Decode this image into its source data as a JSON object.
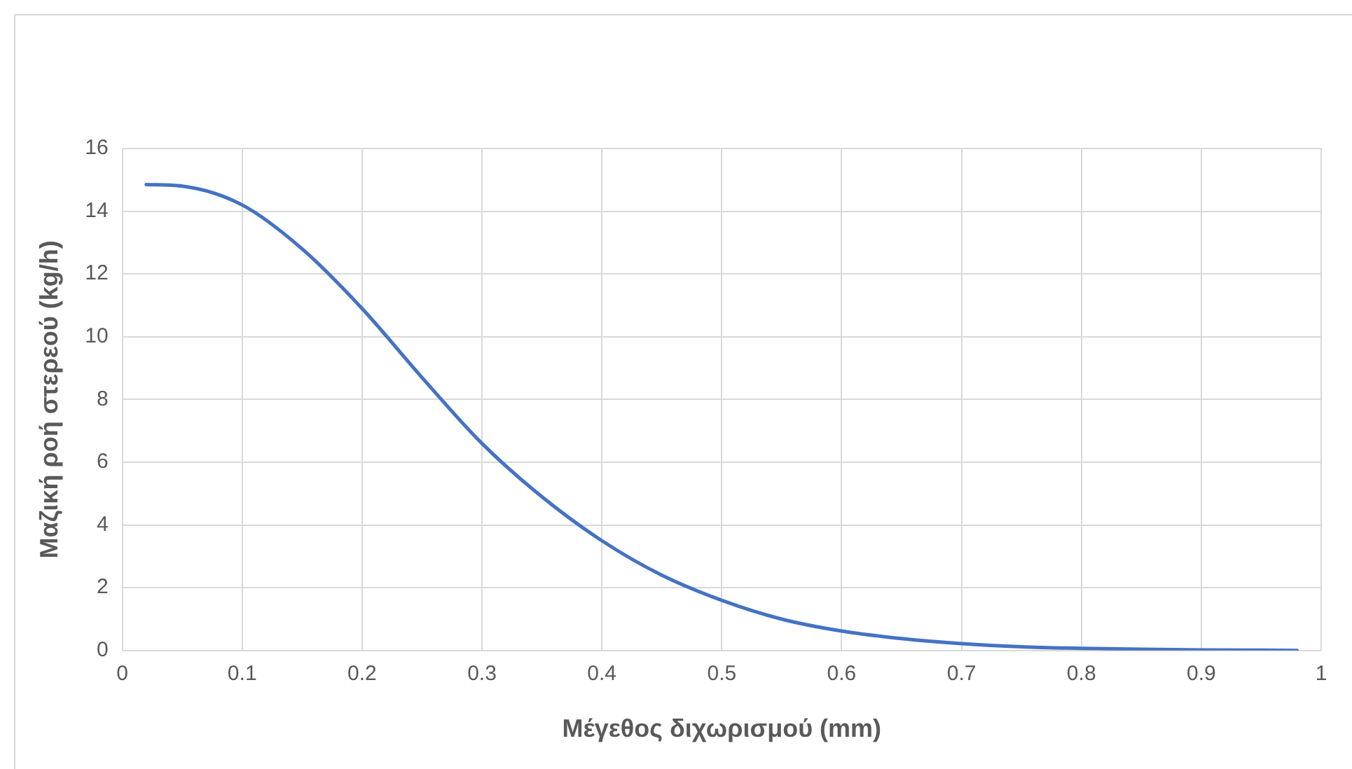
{
  "chart_data": {
    "type": "line",
    "xlabel": "Μέγεθος διχωρισμού (mm)",
    "ylabel": "Μαζική ροή στερεού (kg/h)",
    "x": [
      0.02,
      0.05,
      0.1,
      0.15,
      0.2,
      0.25,
      0.3,
      0.35,
      0.4,
      0.45,
      0.5,
      0.55,
      0.6,
      0.65,
      0.7,
      0.75,
      0.8,
      0.85,
      0.9,
      0.95,
      0.98
    ],
    "series": [
      {
        "color": "#4472c4",
        "values": [
          14.85,
          14.8,
          14.2,
          12.8,
          10.9,
          8.7,
          6.6,
          4.9,
          3.5,
          2.4,
          1.6,
          1.0,
          0.62,
          0.38,
          0.22,
          0.12,
          0.07,
          0.04,
          0.02,
          0.01,
          0.0
        ]
      }
    ],
    "xlim": [
      0,
      1
    ],
    "xticks": [
      0,
      0.1,
      0.2,
      0.3,
      0.4,
      0.5,
      0.6,
      0.7,
      0.8,
      0.9,
      1
    ],
    "ylim": [
      0,
      16
    ],
    "yticks": [
      0,
      2,
      4,
      6,
      8,
      10,
      12,
      14,
      16
    ],
    "grid": true,
    "legend": false,
    "marker": "none",
    "line_style": "solid"
  }
}
